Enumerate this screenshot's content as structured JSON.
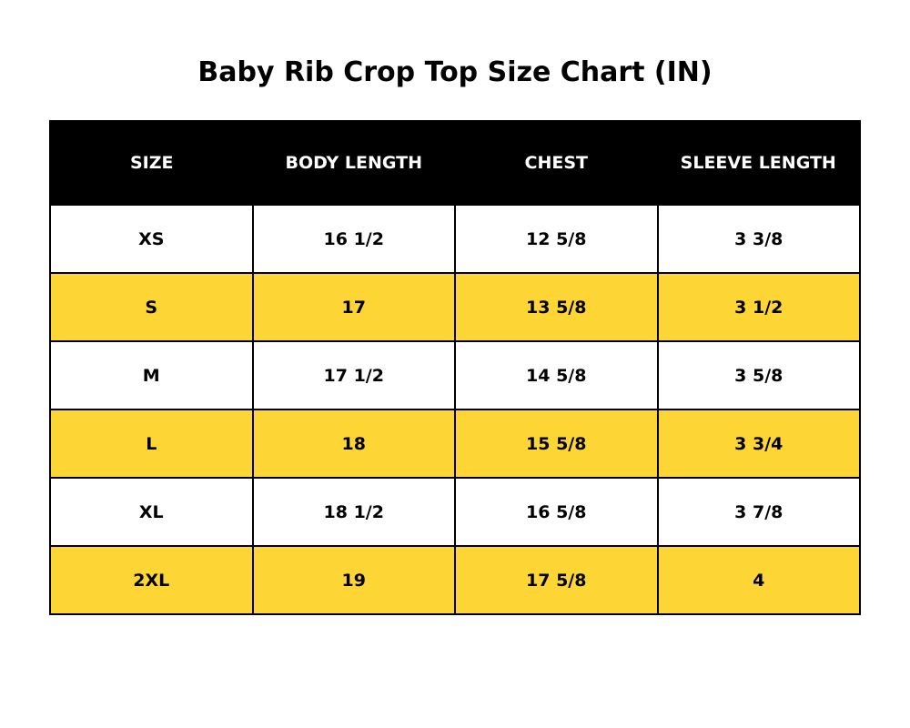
{
  "chart_data": {
    "type": "table",
    "title": "Baby Rib Crop Top Size Chart (IN)",
    "columns": [
      "SIZE",
      "BODY LENGTH",
      "CHEST",
      "SLEEVE LENGTH"
    ],
    "rows": [
      [
        "XS",
        "16 1/2",
        "12 5/8",
        "3 3/8"
      ],
      [
        "S",
        "17",
        "13 5/8",
        "3 1/2"
      ],
      [
        "M",
        "17 1/2",
        "14 5/8",
        "3 5/8"
      ],
      [
        "L",
        "18",
        "15 5/8",
        "3 3/4"
      ],
      [
        "XL",
        "18 1/2",
        "16 5/8",
        "3 7/8"
      ],
      [
        "2XL",
        "19",
        "17 5/8",
        "4"
      ]
    ]
  },
  "colors": {
    "header_background": "#000000",
    "header_text": "#ffffff",
    "row_alt_background": "#FDD535",
    "row_background": "#ffffff",
    "border": "#000000"
  }
}
